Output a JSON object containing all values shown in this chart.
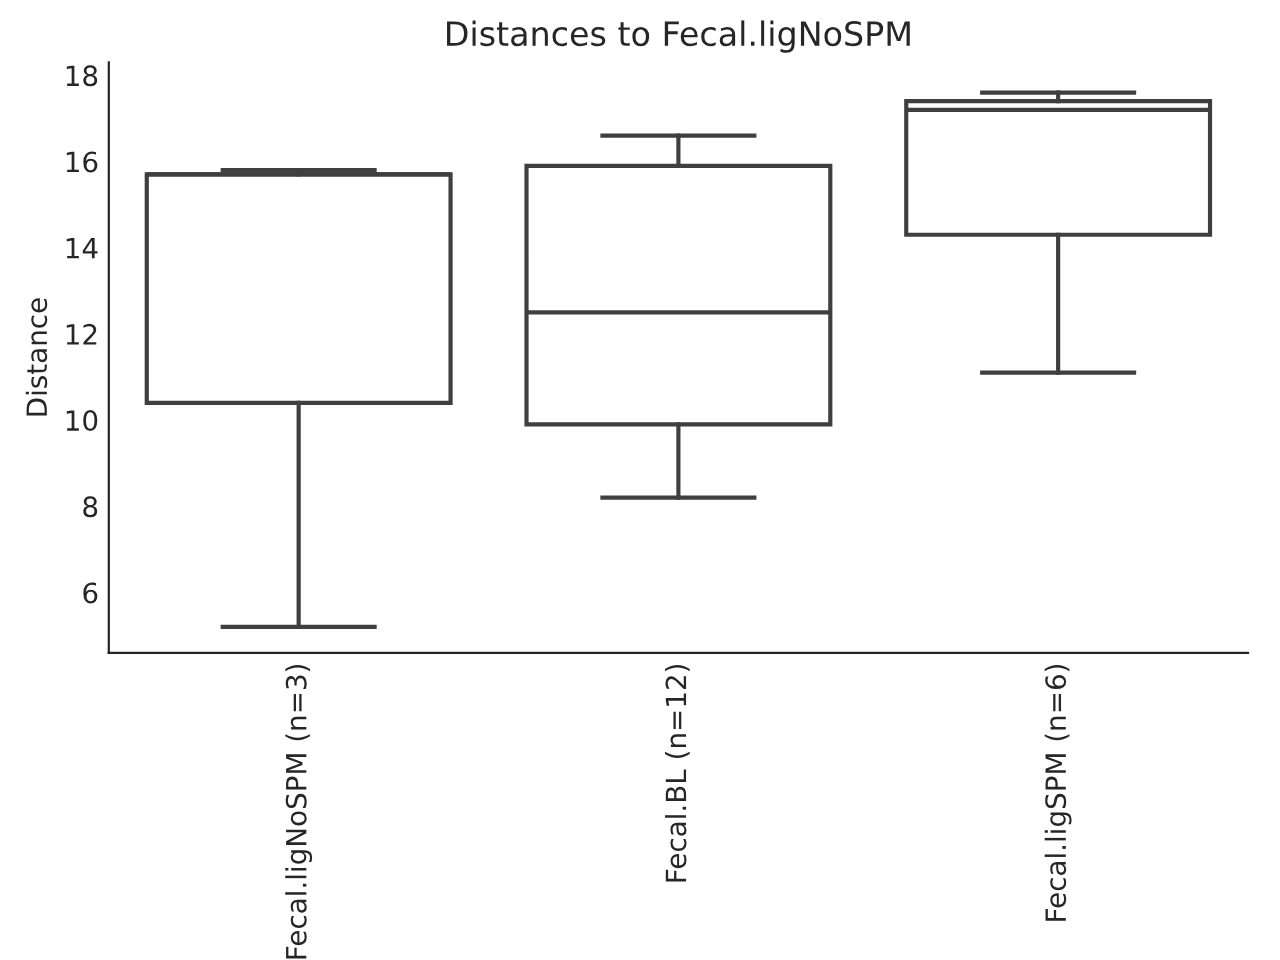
{
  "chart_data": {
    "type": "box",
    "title": "Distances to Fecal.ligNoSPM",
    "ylabel": "Distance",
    "categories": [
      "Fecal.ligNoSPM (n=3)",
      "Fecal.BL (n=12)",
      "Fecal.ligSPM (n=6)"
    ],
    "boxes": [
      {
        "low": 5.2,
        "q1": 10.4,
        "median": 15.7,
        "q3": 15.7,
        "high": 15.8
      },
      {
        "low": 8.2,
        "q1": 9.9,
        "median": 12.5,
        "q3": 15.9,
        "high": 16.6
      },
      {
        "low": 11.1,
        "q1": 14.3,
        "median": 17.2,
        "q3": 17.4,
        "high": 17.6
      }
    ],
    "color": "#3f3f3f",
    "ylim": [
      4.6,
      18.3
    ],
    "yticks": [
      6,
      8,
      10,
      12,
      14,
      16,
      18
    ],
    "grid": false
  }
}
